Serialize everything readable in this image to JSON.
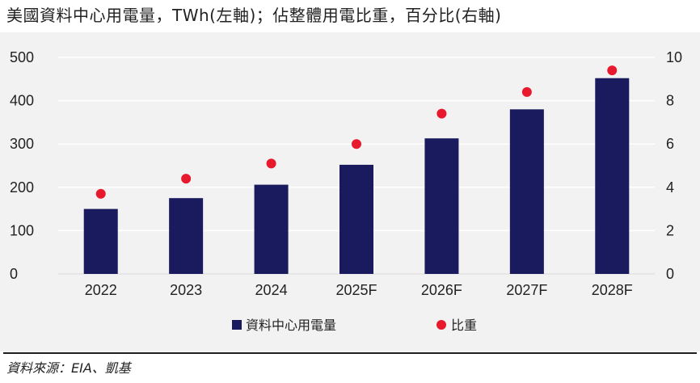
{
  "title": "美國資料中心用電量，TWh(左軸)；佔整體用電比重，百分比(右軸)",
  "source": "資料來源：EIA、凱基",
  "colors": {
    "bar": "#1a1a5e",
    "dot": "#e8192c",
    "panel": "#f2f2f2",
    "grid": "#ffffff"
  },
  "chart_data": {
    "type": "bar",
    "categories": [
      "2022",
      "2023",
      "2024",
      "2025F",
      "2026F",
      "2027F",
      "2028F"
    ],
    "series": [
      {
        "name": "資料中心用電量",
        "type": "bar",
        "axis": "left",
        "values": [
          150,
          175,
          206,
          252,
          313,
          380,
          452
        ]
      },
      {
        "name": "比重",
        "type": "scatter",
        "axis": "right",
        "values": [
          3.7,
          4.4,
          5.1,
          6.0,
          7.4,
          8.4,
          9.4
        ]
      }
    ],
    "y_left": {
      "ylim": [
        0,
        500
      ],
      "ticks": [
        0,
        100,
        200,
        300,
        400,
        500
      ]
    },
    "y_right": {
      "ylim": [
        0,
        10
      ],
      "ticks": [
        0,
        2,
        4,
        6,
        8,
        10
      ]
    },
    "grid": true,
    "legend": "bottom-center"
  }
}
